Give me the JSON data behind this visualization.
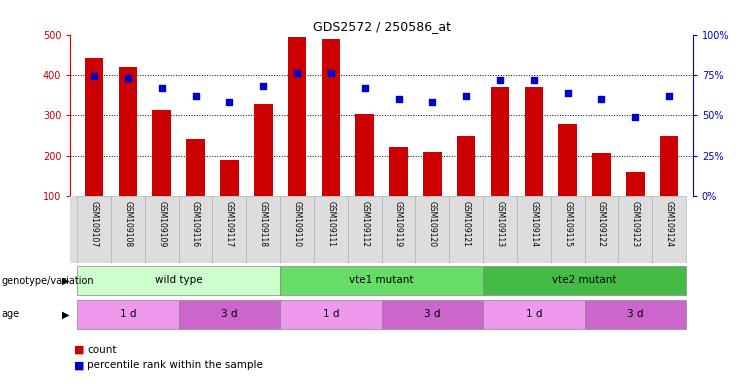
{
  "title": "GDS2572 / 250586_at",
  "samples": [
    "GSM109107",
    "GSM109108",
    "GSM109109",
    "GSM109116",
    "GSM109117",
    "GSM109118",
    "GSM109110",
    "GSM109111",
    "GSM109112",
    "GSM109119",
    "GSM109120",
    "GSM109121",
    "GSM109113",
    "GSM109114",
    "GSM109115",
    "GSM109122",
    "GSM109123",
    "GSM109124"
  ],
  "counts": [
    443,
    419,
    313,
    242,
    188,
    327,
    495,
    490,
    303,
    220,
    208,
    248,
    370,
    370,
    277,
    207,
    160,
    248
  ],
  "percentiles": [
    74,
    73,
    67,
    62,
    58,
    68,
    76,
    76,
    67,
    60,
    58,
    62,
    72,
    72,
    64,
    60,
    49,
    62
  ],
  "bar_color": "#cc0000",
  "dot_color": "#0000cc",
  "ylim_left": [
    100,
    500
  ],
  "ylim_right": [
    0,
    100
  ],
  "yticks_left": [
    100,
    200,
    300,
    400,
    500
  ],
  "yticks_right": [
    0,
    25,
    50,
    75,
    100
  ],
  "grid_lines": [
    200,
    300,
    400
  ],
  "genotype_groups": [
    {
      "label": "wild type",
      "start": 0,
      "end": 6,
      "color": "#ccffcc"
    },
    {
      "label": "vte1 mutant",
      "start": 6,
      "end": 12,
      "color": "#66dd66"
    },
    {
      "label": "vte2 mutant",
      "start": 12,
      "end": 18,
      "color": "#44bb44"
    }
  ],
  "age_groups": [
    {
      "label": "1 d",
      "start": 0,
      "end": 3,
      "color": "#ee99ee"
    },
    {
      "label": "3 d",
      "start": 3,
      "end": 6,
      "color": "#cc66cc"
    },
    {
      "label": "1 d",
      "start": 6,
      "end": 9,
      "color": "#ee99ee"
    },
    {
      "label": "3 d",
      "start": 9,
      "end": 12,
      "color": "#cc66cc"
    },
    {
      "label": "1 d",
      "start": 12,
      "end": 15,
      "color": "#ee99ee"
    },
    {
      "label": "3 d",
      "start": 15,
      "end": 18,
      "color": "#cc66cc"
    }
  ],
  "legend_count_color": "#cc0000",
  "legend_dot_color": "#0000cc",
  "background_color": "#ffffff",
  "row_label_genotype": "genotype/variation",
  "row_label_age": "age",
  "bar_width": 0.55,
  "xlabel_bg_color": "#dddddd"
}
